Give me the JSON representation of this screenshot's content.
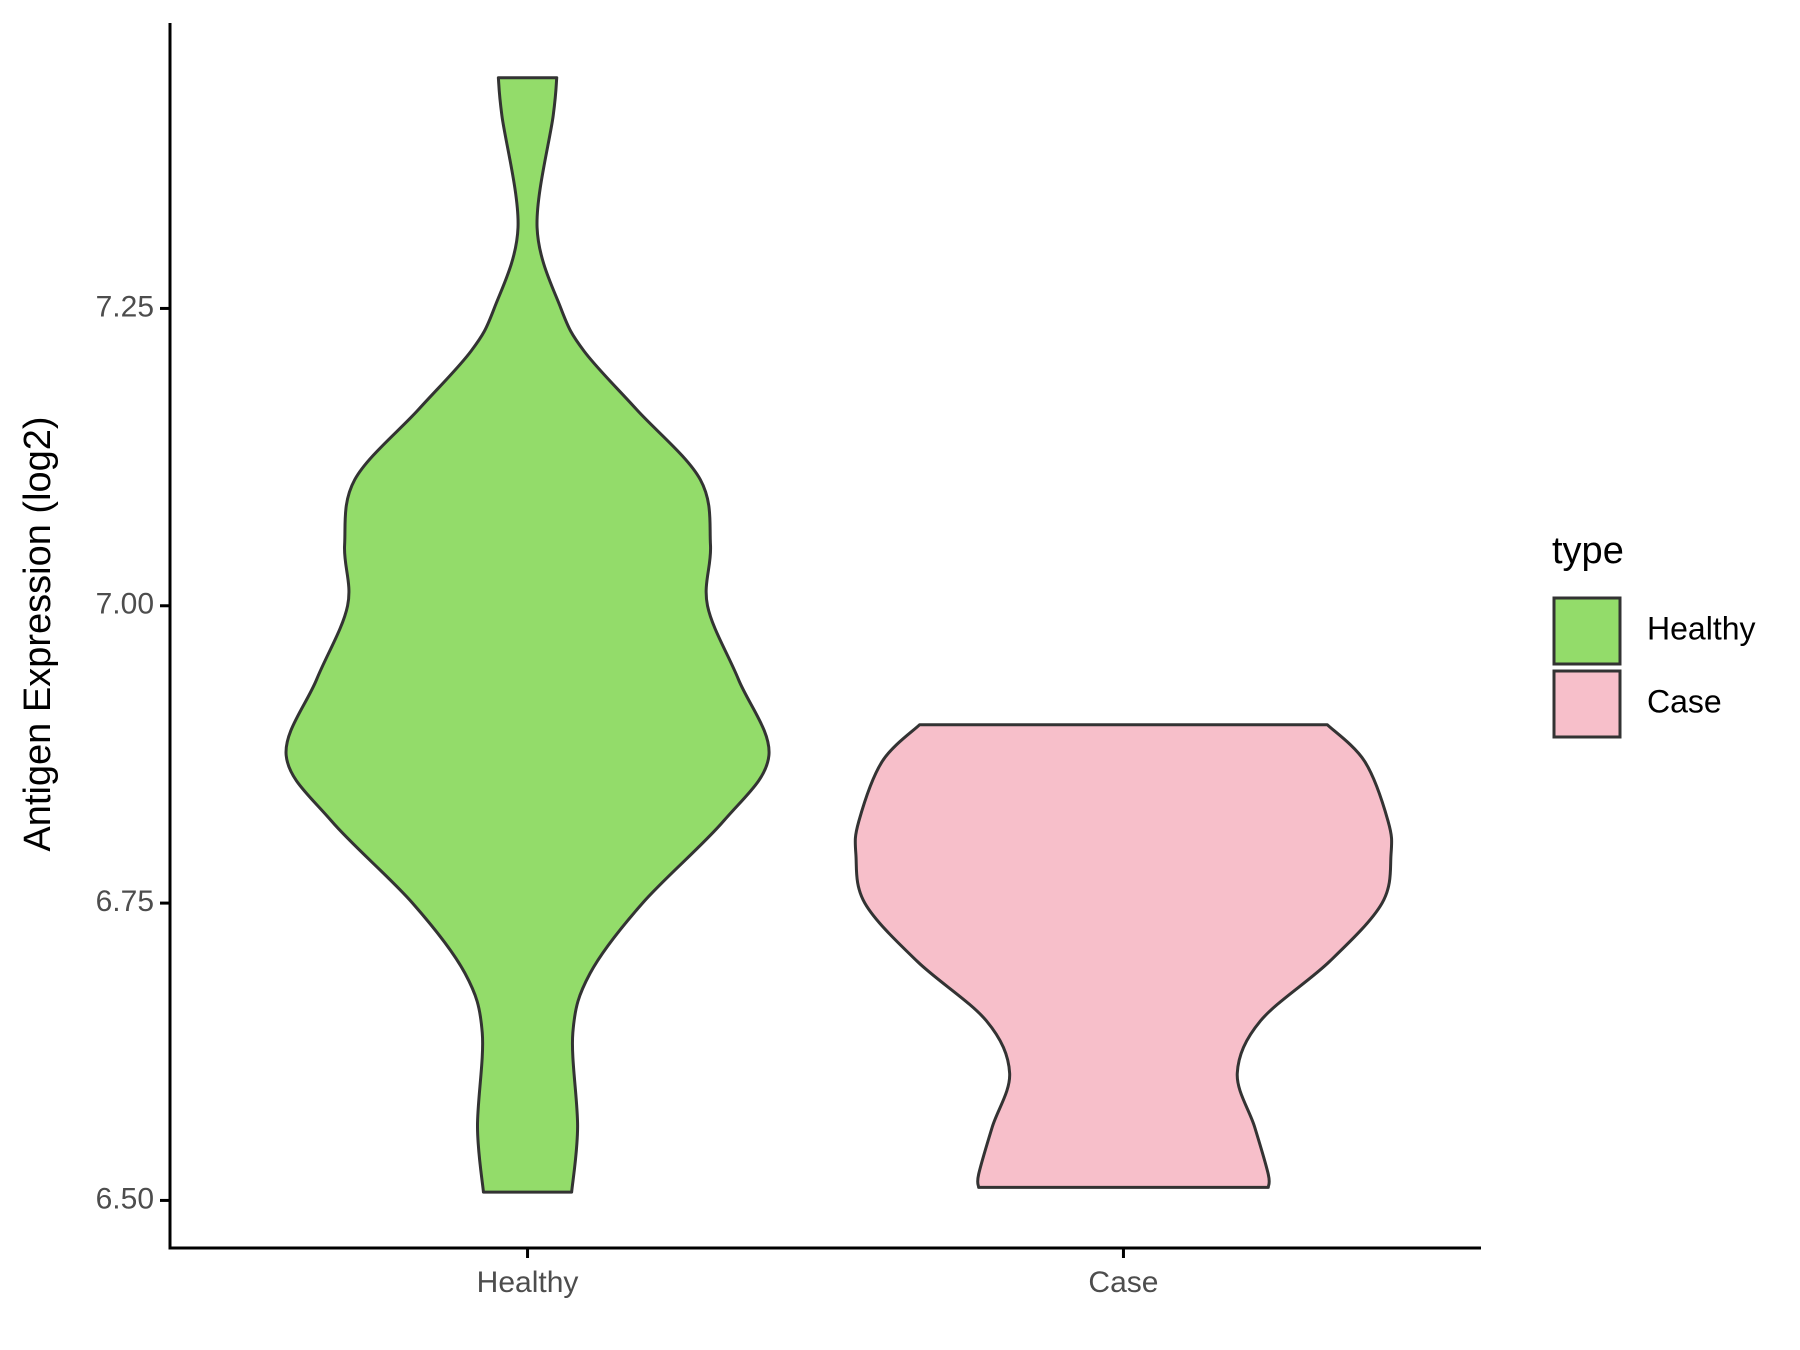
{
  "chart_data": {
    "type": "violin",
    "y_label": "Antigen Expression (log2)",
    "categories": [
      "Healthy",
      "Case"
    ],
    "legend_title": "type",
    "legend_position": "right",
    "ylim": [
      6.46,
      7.49
    ],
    "yticks": [
      {
        "value": 6.5,
        "label": "6.50"
      },
      {
        "value": 6.75,
        "label": "6.75"
      },
      {
        "value": 7,
        "label": "7.00"
      },
      {
        "value": 7.25,
        "label": "7.25"
      }
    ],
    "series": [
      {
        "name": "Healthy",
        "color": "#93dc6a",
        "y": [
          7.444,
          7.412,
          7.318,
          7.25,
          7.214,
          7.165,
          7.106,
          7.051,
          7.0,
          6.938,
          6.874,
          6.819,
          6.75,
          6.691,
          6.641,
          6.562,
          6.507
        ],
        "half_width": [
          0.049,
          0.043,
          0.016,
          0.056,
          0.095,
          0.183,
          0.29,
          0.307,
          0.302,
          0.354,
          0.405,
          0.329,
          0.193,
          0.105,
          0.076,
          0.084,
          0.074
        ]
      },
      {
        "name": "Case",
        "color": "#f7bfca",
        "y": [
          6.9,
          6.869,
          6.819,
          6.791,
          6.75,
          6.701,
          6.651,
          6.607,
          6.562,
          6.522,
          6.511
        ],
        "half_width": [
          0.342,
          0.405,
          0.444,
          0.449,
          0.434,
          0.346,
          0.23,
          0.191,
          0.22,
          0.243,
          0.243
        ]
      }
    ]
  }
}
